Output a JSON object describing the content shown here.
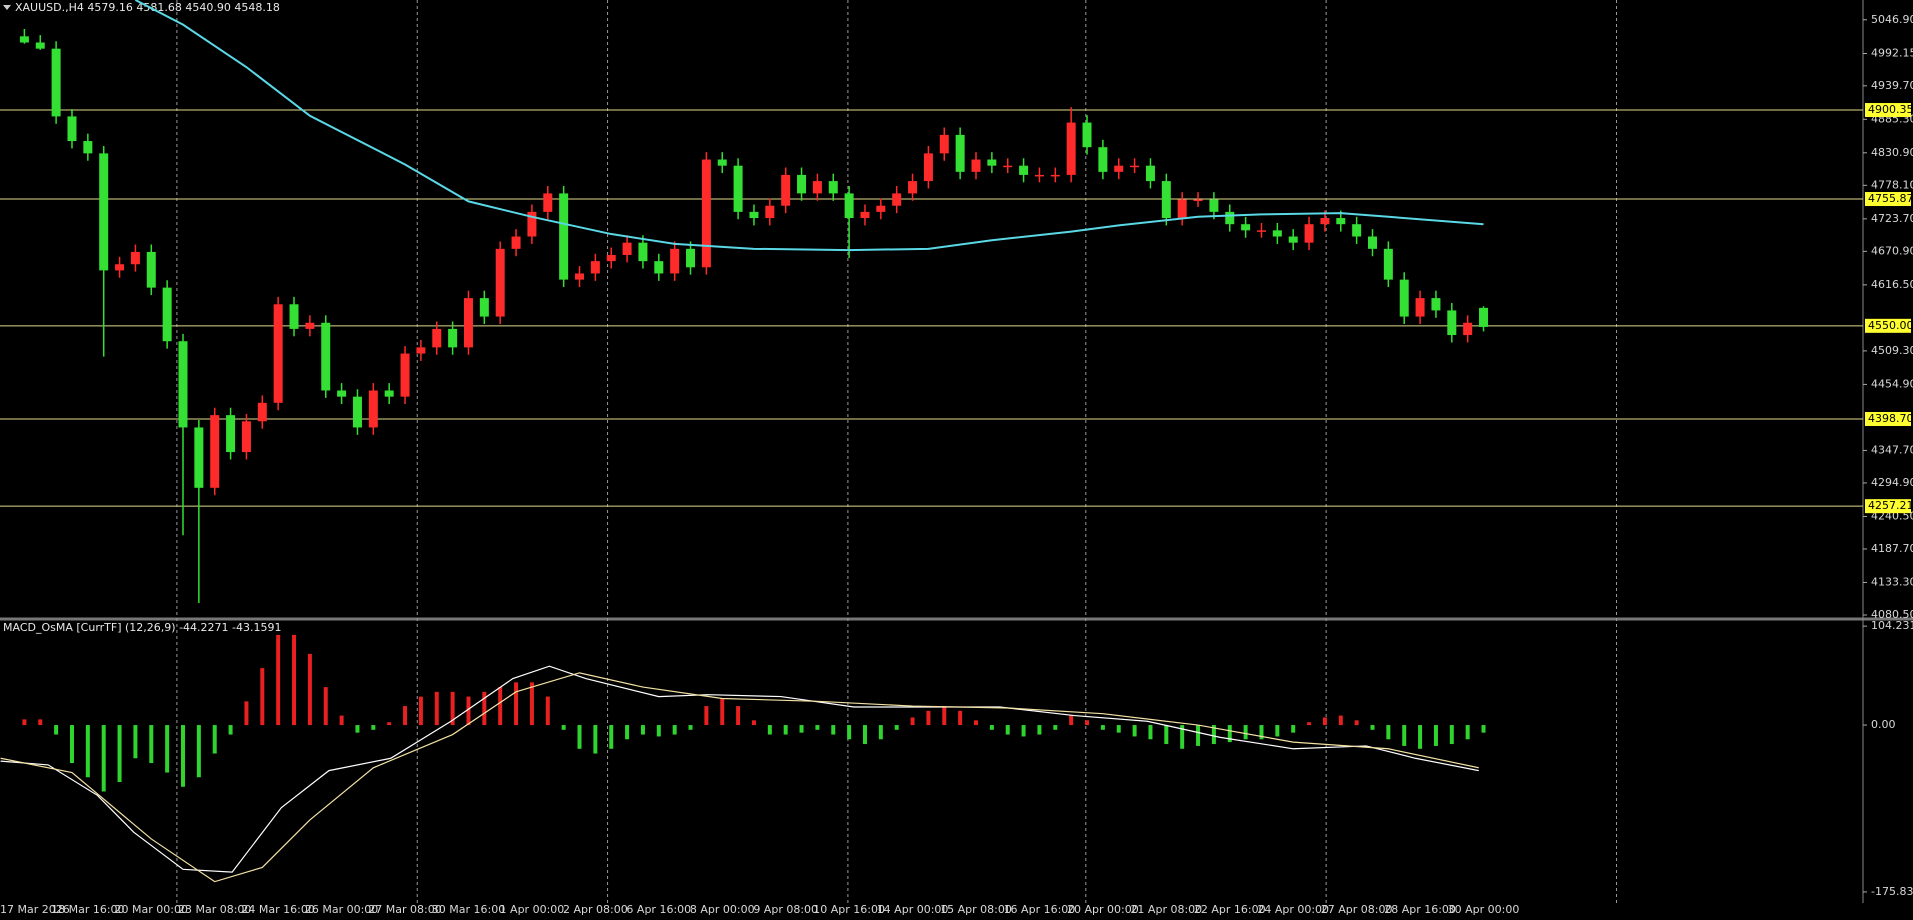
{
  "chart_data": [
    {
      "type": "candlestick",
      "title": "XAUUSD.,H4  4579.16 4581.68 4540.90 4548.18",
      "categories": [
        "17 Mar 2026",
        null,
        null,
        null,
        "18 Mar 16:00",
        null,
        null,
        null,
        "20 Mar 00:00",
        null,
        null,
        null,
        "23 Mar 08:00",
        null,
        null,
        null,
        "24 Mar 16:00",
        null,
        null,
        null,
        "26 Mar 00:00",
        null,
        null,
        null,
        "27 Mar 08:00",
        null,
        null,
        null,
        "30 Mar 16:00",
        null,
        null,
        null,
        "1 Apr 00:00",
        null,
        null,
        null,
        "2 Apr 08:00",
        null,
        null,
        null,
        "6 Apr 16:00",
        null,
        null,
        null,
        "8 Apr 00:00",
        null,
        null,
        null,
        "9 Apr 08:00",
        null,
        null,
        null,
        "10 Apr 16:00",
        null,
        null,
        null,
        "14 Apr 00:00",
        null,
        null,
        null,
        "15 Apr 08:00",
        null,
        null,
        null,
        "16 Apr 16:00",
        null,
        null,
        null,
        "20 Apr 00:00",
        null,
        null,
        null,
        "21 Apr 08:00",
        null,
        null,
        null,
        "22 Apr 16:00",
        null,
        null,
        null,
        "24 Apr 00:00",
        null,
        null,
        null,
        "27 Apr 08:00",
        null,
        null,
        null,
        "28 Apr 16:00",
        null,
        null,
        null,
        "30 Apr 00:00"
      ],
      "open": [
        5020,
        5010,
        5000,
        4890,
        4850,
        4830,
        4640,
        4650,
        4670,
        4612,
        4525,
        4385,
        4287,
        4405,
        4345,
        4395,
        4425,
        4585,
        4545,
        4555,
        4445,
        4435,
        4385,
        4445,
        4435,
        4505,
        4515,
        4545,
        4515,
        4595,
        4565,
        4675,
        4695,
        4735,
        4765,
        4625,
        4635,
        4655,
        4665,
        4685,
        4655,
        4635,
        4675,
        4645,
        4820,
        4810,
        4735,
        4725,
        4745,
        4795,
        4765,
        4785,
        4765,
        4725,
        4735,
        4745,
        4765,
        4785,
        4830,
        4860,
        4800,
        4820,
        4810,
        4810,
        4795,
        4795,
        4795,
        4880,
        4840,
        4800,
        4810,
        4810,
        4785,
        4725,
        4755,
        4755,
        4735,
        4715,
        4705,
        4705,
        4695,
        4685,
        4715,
        4725,
        4715,
        4695,
        4675,
        4625,
        4565,
        4595,
        4575,
        4535,
        4579.16
      ],
      "high": [
        5032,
        5022,
        5012,
        4902,
        4862,
        4842,
        4662,
        4682,
        4682,
        4624,
        4537,
        4397,
        4417,
        4417,
        4407,
        4437,
        4597,
        4597,
        4567,
        4567,
        4457,
        4447,
        4457,
        4457,
        4517,
        4527,
        4557,
        4557,
        4607,
        4607,
        4687,
        4707,
        4747,
        4777,
        4777,
        4647,
        4667,
        4677,
        4697,
        4697,
        4667,
        4687,
        4687,
        4832,
        4832,
        4822,
        4747,
        4757,
        4807,
        4807,
        4797,
        4797,
        4777,
        4747,
        4757,
        4777,
        4797,
        4842,
        4872,
        4872,
        4832,
        4832,
        4822,
        4822,
        4807,
        4807,
        4905,
        4892,
        4852,
        4822,
        4822,
        4822,
        4797,
        4767,
        4767,
        4767,
        4747,
        4727,
        4717,
        4717,
        4707,
        4727,
        4737,
        4737,
        4727,
        4707,
        4687,
        4637,
        4607,
        4607,
        4587,
        4567,
        4581.68
      ],
      "low": [
        5008,
        4998,
        4878,
        4838,
        4818,
        4500,
        4628,
        4638,
        4600,
        4513,
        4210,
        4100,
        4275,
        4333,
        4333,
        4383,
        4413,
        4533,
        4533,
        4433,
        4423,
        4373,
        4373,
        4423,
        4423,
        4493,
        4503,
        4503,
        4503,
        4553,
        4553,
        4663,
        4683,
        4723,
        4613,
        4613,
        4623,
        4643,
        4653,
        4643,
        4623,
        4623,
        4633,
        4633,
        4798,
        4723,
        4713,
        4713,
        4733,
        4753,
        4753,
        4753,
        4660,
        4713,
        4723,
        4733,
        4753,
        4773,
        4818,
        4788,
        4788,
        4798,
        4798,
        4783,
        4783,
        4783,
        4783,
        4828,
        4788,
        4788,
        4798,
        4773,
        4713,
        4713,
        4743,
        4723,
        4703,
        4693,
        4693,
        4683,
        4673,
        4673,
        4703,
        4703,
        4683,
        4663,
        4613,
        4553,
        4553,
        4563,
        4523,
        4523,
        4540.9
      ],
      "close": [
        5010,
        5000,
        4890,
        4850,
        4830,
        4640,
        4650,
        4670,
        4612,
        4525,
        4385,
        4287,
        4405,
        4345,
        4395,
        4425,
        4585,
        4545,
        4555,
        4445,
        4435,
        4385,
        4445,
        4435,
        4505,
        4515,
        4545,
        4515,
        4595,
        4565,
        4675,
        4695,
        4735,
        4765,
        4625,
        4635,
        4655,
        4665,
        4685,
        4655,
        4635,
        4675,
        4645,
        4820,
        4810,
        4735,
        4725,
        4745,
        4795,
        4765,
        4785,
        4765,
        4725,
        4735,
        4745,
        4765,
        4785,
        4830,
        4860,
        4800,
        4820,
        4810,
        4810,
        4795,
        4795,
        4795,
        4880,
        4840,
        4800,
        4810,
        4810,
        4785,
        4725,
        4755,
        4755,
        4735,
        4715,
        4705,
        4705,
        4695,
        4685,
        4715,
        4725,
        4715,
        4695,
        4675,
        4625,
        4565,
        4595,
        4575,
        4535,
        4555,
        4548.18
      ],
      "up_color": "#ff2a2a",
      "down_color": "#33e033",
      "moving_average": {
        "color": "#5ad8e6",
        "x": [
          7,
          10,
          14,
          18,
          24,
          28,
          32,
          37,
          41,
          46,
          52,
          57,
          61,
          66,
          69,
          74,
          78,
          83,
          86,
          92
        ],
        "values": [
          5079,
          5039,
          4970,
          4891,
          4812,
          4752,
          4727,
          4699,
          4683,
          4675,
          4673,
          4675,
          4689,
          4703,
          4713,
          4727,
          4731,
          4733,
          4727,
          4715
        ]
      },
      "levels": [
        4900.35,
        4755.87,
        {
          "value": 4550,
          "label": "4550.00"
        },
        {
          "value": 4398.7,
          "label": "4398.70"
        },
        4257.21
      ],
      "level_color": "#e2dc8c",
      "ylim": [
        4074,
        5079
      ],
      "yticks": [
        {
          "value": 5046.9,
          "label": "5046.90"
        },
        4992.15,
        {
          "value": 4939.7,
          "label": "4939.70"
        },
        {
          "value": 4885.3,
          "label": "4885.30"
        },
        {
          "value": 4830.9,
          "label": "4830.90"
        },
        {
          "value": 4778.1,
          "label": "4778.10"
        },
        {
          "value": 4723.7,
          "label": "4723.70"
        },
        {
          "value": 4670.9,
          "label": "4670.90"
        },
        {
          "value": 4616.5,
          "label": "4616.50"
        },
        {
          "value": 4509.3,
          "label": "4509.30"
        },
        {
          "value": 4454.9,
          "label": "4454.90"
        },
        {
          "value": 4347.7,
          "label": "4347.70"
        },
        {
          "value": 4294.9,
          "label": "4294.90"
        },
        {
          "value": 4240.5,
          "label": "4240.50"
        },
        {
          "value": 4187.7,
          "label": "4187.70"
        },
        {
          "value": 4133.3,
          "label": "4133.30"
        },
        {
          "value": 4080.5,
          "label": "4080.50"
        }
      ]
    },
    {
      "type": "macd",
      "title": "MACD_OsMA [CurrTF] (12,26,9) -44.2271 -43.1591",
      "histogram": [
        6,
        6,
        -10,
        -40,
        -55,
        -70,
        -60,
        -35,
        -40,
        -50,
        -65,
        -55,
        -30,
        -10,
        25,
        60,
        95,
        95,
        75,
        40,
        10,
        -8,
        -5,
        3,
        20,
        30,
        35,
        35,
        30,
        35,
        40,
        45,
        45,
        30,
        -5,
        -25,
        -30,
        -25,
        -15,
        -10,
        -12,
        -10,
        -5,
        20,
        28,
        20,
        5,
        -10,
        -10,
        -8,
        -5,
        -10,
        -15,
        -20,
        -15,
        -5,
        8,
        15,
        20,
        15,
        5,
        -5,
        -10,
        -12,
        -10,
        -5,
        10,
        5,
        -5,
        -8,
        -12,
        -15,
        -20,
        -25,
        -22,
        -20,
        -18,
        -15,
        -15,
        -12,
        -8,
        3,
        8,
        10,
        5,
        -5,
        -15,
        -22,
        -25,
        -22,
        -20,
        -15,
        -8
      ],
      "positive_color": "#e82020",
      "negative_color": "#2fd42f",
      "lines": [
        {
          "color": "#ffffff",
          "x": [
            -1.5,
            1.5,
            4.6,
            6.9,
            10,
            13.1,
            16.2,
            19.2,
            23.1,
            26.9,
            30.8,
            33.1,
            35.4,
            40,
            43.1,
            47.7,
            52.3,
            56.9,
            61.5,
            66.2,
            70.8,
            75.4,
            80,
            84.6,
            87.7,
            91.7
          ],
          "values": [
            -38,
            -42,
            -74,
            -113,
            -152,
            -155,
            -87,
            -48,
            -35,
            4,
            49,
            62,
            49,
            30,
            32,
            30,
            19,
            19,
            19,
            10,
            4,
            -13,
            -25,
            -22,
            -35,
            -48
          ]
        },
        {
          "color": "#f3e2a4",
          "x": [
            -1.5,
            3,
            8,
            12,
            15,
            18,
            22,
            27,
            31,
            35,
            39,
            44,
            50,
            56,
            62,
            68,
            74,
            80,
            86,
            91.7
          ],
          "values": [
            -35,
            -50,
            -120,
            -165,
            -150,
            -100,
            -45,
            -10,
            35,
            55,
            40,
            28,
            25,
            20,
            18,
            12,
            0,
            -18,
            -25,
            -45
          ]
        }
      ],
      "ylim": [
        -187.5,
        110.7
      ],
      "yticks": [
        104.231,
        {
          "value": 0,
          "label": "0.00"
        },
        -175.832
      ]
    }
  ]
}
